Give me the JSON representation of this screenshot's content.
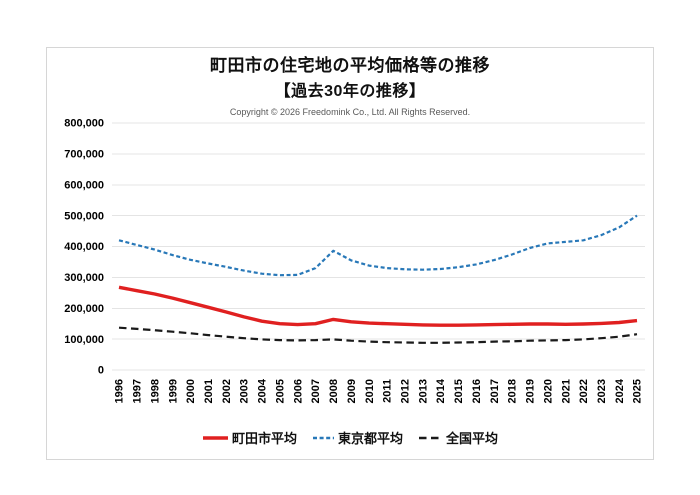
{
  "chart_data": {
    "type": "line",
    "title": "町田市の住宅地の平均価格等の推移",
    "subtitle": "【過去30年の推移】",
    "copyright": "Copyright © 2026 Freedomink Co., Ltd. All Rights Reserved.",
    "x": [
      "1996",
      "1997",
      "1998",
      "1999",
      "2000",
      "2001",
      "2002",
      "2003",
      "2004",
      "2005",
      "2006",
      "2007",
      "2008",
      "2009",
      "2010",
      "2011",
      "2012",
      "2013",
      "2014",
      "2015",
      "2016",
      "2017",
      "2018",
      "2019",
      "2020",
      "2021",
      "2022",
      "2023",
      "2024",
      "2025"
    ],
    "series": [
      {
        "name": "町田市平均",
        "color": "#e02020",
        "style": "solid",
        "values": [
          268000,
          257000,
          246000,
          233000,
          218000,
          203000,
          188000,
          172000,
          158000,
          150000,
          147000,
          150000,
          164000,
          156000,
          152000,
          150000,
          148000,
          146000,
          145000,
          145000,
          146000,
          147000,
          148000,
          149000,
          149000,
          148000,
          149000,
          151000,
          154000,
          160000
        ]
      },
      {
        "name": "東京都平均",
        "color": "#2878b8",
        "style": "dashed-short",
        "values": [
          420000,
          405000,
          390000,
          372000,
          357000,
          345000,
          334000,
          322000,
          312000,
          307000,
          308000,
          330000,
          386000,
          355000,
          338000,
          330000,
          326000,
          325000,
          327000,
          333000,
          342000,
          356000,
          374000,
          395000,
          410000,
          415000,
          420000,
          437000,
          462000,
          500000
        ]
      },
      {
        "name": "全国平均",
        "color": "#1a1a1a",
        "style": "dashed-long",
        "values": [
          137000,
          133000,
          129000,
          124000,
          119000,
          113000,
          108000,
          103000,
          99000,
          97000,
          96000,
          97000,
          99000,
          95000,
          92000,
          90000,
          89000,
          88000,
          88000,
          89000,
          90000,
          92000,
          93000,
          95000,
          96000,
          97000,
          99000,
          103000,
          108000,
          116000
        ]
      }
    ],
    "ylim": [
      0,
      800000
    ],
    "ytick_interval": 100000,
    "ytick_labels": [
      "0",
      "100,000",
      "200,000",
      "300,000",
      "400,000",
      "500,000",
      "600,000",
      "700,000",
      "800,000"
    ],
    "grid": true,
    "gridline_color": "#e4e4e4",
    "legend_position": "bottom",
    "xlabel": "",
    "ylabel": ""
  }
}
